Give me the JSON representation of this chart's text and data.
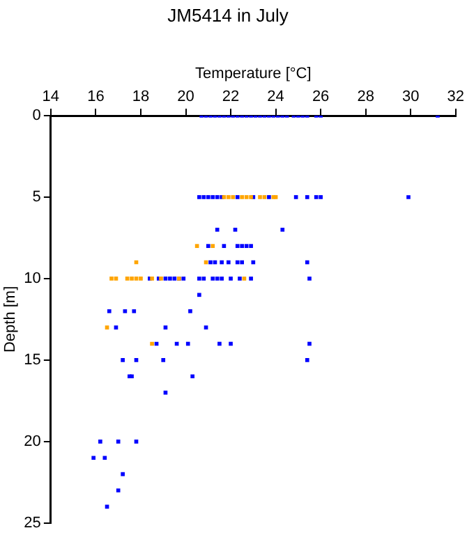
{
  "chart_data": {
    "type": "scatter",
    "title": "JM5414 in July",
    "xlabel": "Temperature [°C]",
    "ylabel": "Depth [m]",
    "xlim": [
      14,
      32
    ],
    "xticks": [
      14,
      16,
      18,
      20,
      22,
      24,
      26,
      28,
      30,
      32
    ],
    "ylim": [
      25,
      0
    ],
    "yticks": [
      0,
      5,
      10,
      15,
      20,
      25
    ],
    "grid": false,
    "legend": false,
    "marker": "square",
    "series": [
      {
        "color": "#ffa500",
        "x": [
          21.7,
          21.9,
          22.1,
          22.5,
          22.7,
          22.9,
          23.3,
          23.5,
          23.9,
          24.0,
          20.5,
          21.2,
          17.8,
          20.9,
          16.7,
          16.9,
          17.4,
          17.6,
          17.8,
          18.0,
          18.5,
          18.9,
          19.7,
          22.6,
          16.5,
          18.5
        ],
        "values": [
          5,
          5,
          5,
          5,
          5,
          5,
          5,
          5,
          5,
          5,
          8,
          8,
          9,
          9,
          10,
          10,
          10,
          10,
          10,
          10,
          10,
          10,
          10,
          10,
          13,
          14
        ]
      },
      {
        "color": "#0000ff",
        "x": [
          20.7,
          20.9,
          21.1,
          21.3,
          21.5,
          21.7,
          21.9,
          22.1,
          22.3,
          22.5,
          22.7,
          22.9,
          23.1,
          23.3,
          23.5,
          23.7,
          23.9,
          24.1,
          24.3,
          24.5,
          24.8,
          25.0,
          25.2,
          25.4,
          25.8,
          26.0,
          31.2,
          20.6,
          20.8,
          21.0,
          21.2,
          21.4,
          21.6,
          22.3,
          23.0,
          23.7,
          24.9,
          25.4,
          25.8,
          26.0,
          29.9,
          21.4,
          22.2,
          24.3,
          21.0,
          21.7,
          22.3,
          22.5,
          22.7,
          22.9,
          21.1,
          21.3,
          21.6,
          21.9,
          22.3,
          22.5,
          23.0,
          25.4,
          18.4,
          18.8,
          19.1,
          19.3,
          19.5,
          19.7,
          19.9,
          20.6,
          20.8,
          21.2,
          21.4,
          21.6,
          22.0,
          22.4,
          22.9,
          25.5,
          20.6,
          16.6,
          17.3,
          17.7,
          20.2,
          16.9,
          19.1,
          20.9,
          18.7,
          19.6,
          20.1,
          21.5,
          22.0,
          25.5,
          17.2,
          17.8,
          19.0,
          25.4,
          17.5,
          17.6,
          20.3,
          19.1,
          16.2,
          17.0,
          17.8,
          15.9,
          16.4,
          17.2,
          17.0,
          16.5
        ],
        "values": [
          0,
          0,
          0,
          0,
          0,
          0,
          0,
          0,
          0,
          0,
          0,
          0,
          0,
          0,
          0,
          0,
          0,
          0,
          0,
          0,
          0,
          0,
          0,
          0,
          0,
          0,
          0,
          5,
          5,
          5,
          5,
          5,
          5,
          5,
          5,
          5,
          5,
          5,
          5,
          5,
          5,
          7,
          7,
          7,
          8,
          8,
          8,
          8,
          8,
          8,
          9,
          9,
          9,
          9,
          9,
          9,
          9,
          9,
          10,
          10,
          10,
          10,
          10,
          10,
          10,
          10,
          10,
          10,
          10,
          10,
          10,
          10,
          10,
          10,
          11,
          12,
          12,
          12,
          12,
          13,
          13,
          13,
          14,
          14,
          14,
          14,
          14,
          14,
          15,
          15,
          15,
          15,
          16,
          16,
          16,
          17,
          20,
          20,
          20,
          21,
          21,
          22,
          23,
          24
        ]
      }
    ]
  }
}
